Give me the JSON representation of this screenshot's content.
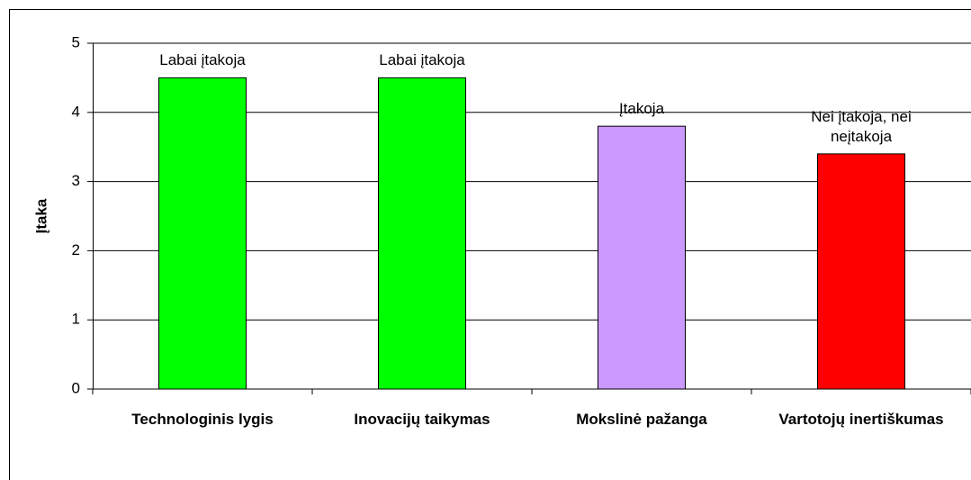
{
  "chart_data": {
    "type": "bar",
    "y_label": "Įtaka",
    "categories": [
      "Technologinis lygis",
      "Inovacijų taikymas",
      "Mokslinė pažanga",
      "Vartotojų inertiškumas"
    ],
    "values": [
      4.5,
      4.5,
      3.8,
      3.4
    ],
    "annotations": [
      "Labai įtakoja",
      "Labai įtakoja",
      "Įtakoja",
      "Nei įtakoja, nei neįtakoja"
    ],
    "colors": [
      "#00ff00",
      "#00ff00",
      "#cc99ff",
      "#ff0000"
    ],
    "ylim": [
      0,
      5
    ],
    "yticks": [
      0,
      1,
      2,
      3,
      4,
      5
    ],
    "grid": true
  }
}
